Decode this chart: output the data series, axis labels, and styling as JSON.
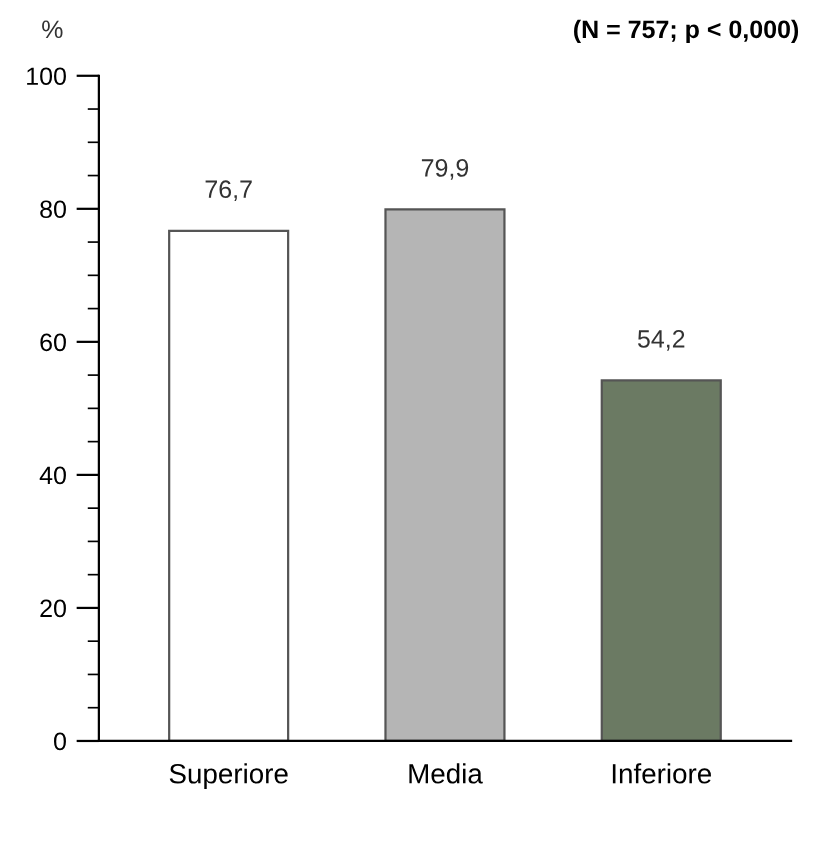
{
  "chart_data": {
    "type": "bar",
    "ylabel": "%",
    "annotations": [
      "(N = 757; p < 0,000)"
    ],
    "categories": [
      "Superiore",
      "Media",
      "Inferiore"
    ],
    "values": [
      76.7,
      79.9,
      54.2
    ],
    "colors": [
      "#ffffff",
      "#b5b5b5",
      "#6b7a63"
    ],
    "value_labels": [
      "76,7",
      "79,9",
      "54,2"
    ],
    "ylim": [
      0,
      100
    ],
    "yticks": [
      0,
      20,
      40,
      60,
      80,
      100
    ],
    "grid": false,
    "legend": false
  }
}
